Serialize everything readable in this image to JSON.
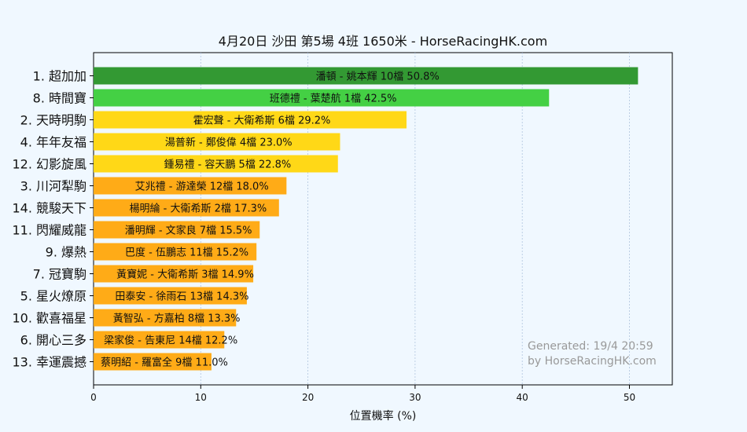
{
  "chart_data": {
    "type": "bar",
    "orientation": "horizontal",
    "title": "4月20日  沙田  第5場  4班  1650米 - HorseRacingHK.com",
    "xlabel": "位置機率 (%)",
    "xlim": [
      0,
      54
    ],
    "xticks": [
      "0",
      "10",
      "20",
      "30",
      "40",
      "50"
    ],
    "grid": true,
    "categories": [
      "1. 超加加",
      "8. 時間寶",
      "2. 天時明駒",
      "4. 年年友福",
      "12. 幻影旋風",
      "3. 川河犁駒",
      "14. 競駿天下",
      "11. 閃耀威龍",
      "9. 爆熱",
      "7. 冠寶駒",
      "5. 星火燎原",
      "10. 歡喜福星",
      "6. 開心三多",
      "13. 幸運震撼"
    ],
    "values": [
      50.8,
      42.5,
      29.2,
      23.0,
      22.8,
      18.0,
      17.3,
      15.5,
      15.2,
      14.9,
      14.3,
      13.3,
      12.2,
      11.0
    ],
    "labels": [
      "潘頓 - 姚本輝 10檔  50.8%",
      "班德禮 - 葉楚航 1檔  42.5%",
      "霍宏聲 - 大衛希斯 6檔  29.2%",
      "湯普新 - 鄭俊偉 4檔  23.0%",
      "鍾易禮 - 容天鵬 5檔  22.8%",
      "艾兆禮 - 游達榮 12檔  18.0%",
      "楊明綸 - 大衛希斯 2檔  17.3%",
      "潘明輝 - 文家良 7檔  15.5%",
      "巴度 - 伍鵬志 11檔  15.2%",
      "黃寶妮 - 大衛希斯 3檔  14.9%",
      "田泰安 - 徐雨石 13檔  14.3%",
      "黃智弘 - 方嘉柏 8檔  13.3%",
      "梁家俊 - 告東尼 14檔  12.2%",
      "蔡明紹 - 羅富全 9檔  11.0%"
    ],
    "colors": [
      "#339933",
      "#44d044",
      "#ffd817",
      "#ffd817",
      "#ffd817",
      "#ffab17",
      "#ffab17",
      "#ffab17",
      "#ffab17",
      "#ffab17",
      "#ffab17",
      "#ffab17",
      "#ffab17",
      "#ffab17"
    ],
    "watermark": [
      "Generated: 19/4 20:59",
      "by HorseRacingHK.com"
    ]
  }
}
